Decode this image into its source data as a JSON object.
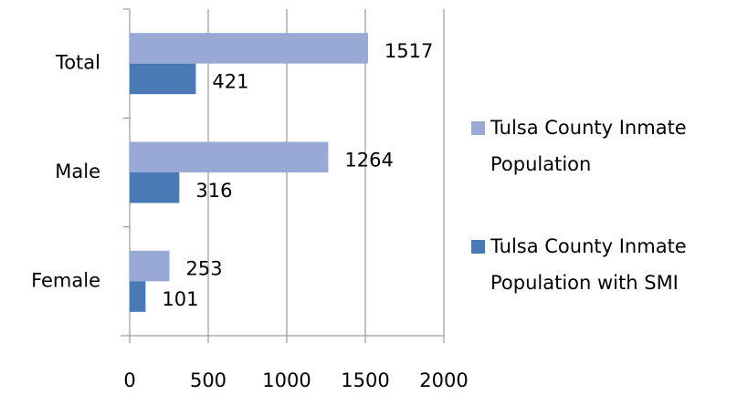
{
  "chart_data": {
    "type": "bar",
    "orientation": "horizontal",
    "categories": [
      "Total",
      "Male",
      "Female"
    ],
    "series": [
      {
        "name": "Tulsa County Inmate Population",
        "color": "#98a9d6",
        "values": [
          1517,
          1264,
          253
        ]
      },
      {
        "name": "Tulsa County Inmate Population with SMI",
        "color": "#4a7ab5",
        "values": [
          421,
          316,
          101
        ]
      }
    ],
    "xlim": [
      0,
      2000
    ],
    "xticks": [
      0,
      500,
      1000,
      1500,
      2000
    ],
    "grid": true,
    "legend": "right"
  }
}
